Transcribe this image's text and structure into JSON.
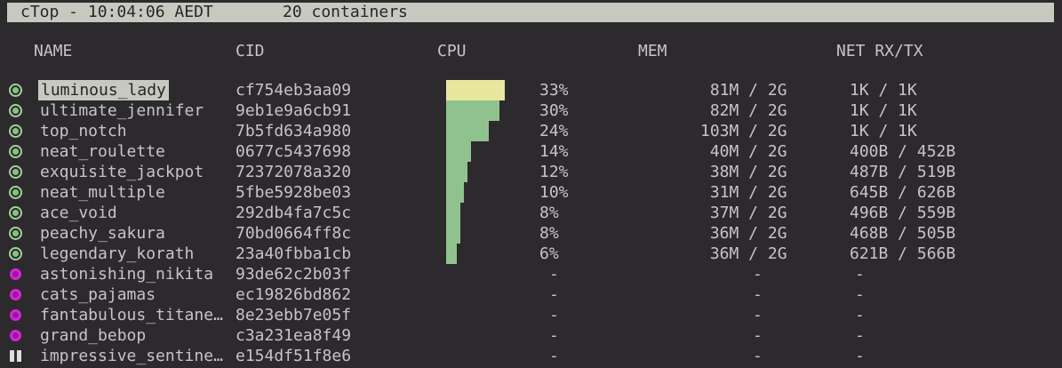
{
  "topbar": {
    "title": "cTop - 10:04:06 AEDT",
    "count_label": "20 containers"
  },
  "columns": {
    "name": "NAME",
    "cid": "CID",
    "cpu": "CPU",
    "mem": "MEM",
    "net": "NET RX/TX"
  },
  "colors": {
    "background": "#2d2a2d",
    "topbar_bg": "#c7c9c1",
    "topbar_text": "#262626",
    "text": "#c7c4c7",
    "selected_bg": "#c7c9c1",
    "selected_text": "#262626",
    "bar_yellow": "#e9e6a0",
    "bar_green": "#90c290",
    "status_running": "#87c283",
    "status_exited": "#d428d4",
    "status_paused": "#dedede"
  },
  "dash": "-",
  "rows": [
    {
      "status": "running",
      "selected": true,
      "name": "luminous_lady",
      "cid": "cf754eb3aa09",
      "cpu": "33%",
      "cpu_pct": 33,
      "bar": "yellow",
      "mem_used": "81M",
      "mem_limit": "2G",
      "net_rx": "1K",
      "net_tx": "1K"
    },
    {
      "status": "running",
      "name": "ultimate_jennifer",
      "cid": "9eb1e9a6cb91",
      "cpu": "30%",
      "cpu_pct": 30,
      "bar": "green",
      "mem_used": "82M",
      "mem_limit": "2G",
      "net_rx": "1K",
      "net_tx": "1K"
    },
    {
      "status": "running",
      "name": "top_notch",
      "cid": "7b5fd634a980",
      "cpu": "24%",
      "cpu_pct": 24,
      "bar": "green",
      "mem_used": "103M",
      "mem_limit": "2G",
      "net_rx": "1K",
      "net_tx": "1K"
    },
    {
      "status": "running",
      "name": "neat_roulette",
      "cid": "0677c5437698",
      "cpu": "14%",
      "cpu_pct": 14,
      "bar": "green",
      "mem_used": "40M",
      "mem_limit": "2G",
      "net_rx": "400B",
      "net_tx": "452B"
    },
    {
      "status": "running",
      "name": "exquisite_jackpot",
      "cid": "72372078a320",
      "cpu": "12%",
      "cpu_pct": 12,
      "bar": "green",
      "mem_used": "38M",
      "mem_limit": "2G",
      "net_rx": "487B",
      "net_tx": "519B"
    },
    {
      "status": "running",
      "name": "neat_multiple",
      "cid": "5fbe5928be03",
      "cpu": "10%",
      "cpu_pct": 10,
      "bar": "green",
      "mem_used": "31M",
      "mem_limit": "2G",
      "net_rx": "645B",
      "net_tx": "626B"
    },
    {
      "status": "running",
      "name": "ace_void",
      "cid": "292db4fa7c5c",
      "cpu": "8%",
      "cpu_pct": 8,
      "bar": "green",
      "mem_used": "37M",
      "mem_limit": "2G",
      "net_rx": "496B",
      "net_tx": "559B"
    },
    {
      "status": "running",
      "name": "peachy_sakura",
      "cid": "70bd0664ff8c",
      "cpu": "8%",
      "cpu_pct": 8,
      "bar": "green",
      "mem_used": "36M",
      "mem_limit": "2G",
      "net_rx": "468B",
      "net_tx": "505B"
    },
    {
      "status": "running",
      "name": "legendary_korath",
      "cid": "23a40fbba1cb",
      "cpu": "6%",
      "cpu_pct": 6,
      "bar": "green",
      "mem_used": "36M",
      "mem_limit": "2G",
      "net_rx": "621B",
      "net_tx": "566B"
    },
    {
      "status": "exited",
      "name": "astonishing_nikita",
      "cid": "93de62c2b03f",
      "cpu": "-",
      "mem": "-",
      "net": "-"
    },
    {
      "status": "exited",
      "name": "cats_pajamas",
      "cid": "ec19826bd862",
      "cpu": "-",
      "mem": "-",
      "net": "-"
    },
    {
      "status": "exited",
      "name": "fantabulous_titane…",
      "cid": "8e23ebb7e05f",
      "cpu": "-",
      "mem": "-",
      "net": "-"
    },
    {
      "status": "exited",
      "name": "grand_bebop",
      "cid": "c3a231ea8f49",
      "cpu": "-",
      "mem": "-",
      "net": "-"
    },
    {
      "status": "paused",
      "name": "impressive_sentine…",
      "cid": "e154df51f8e6",
      "cpu": "-",
      "mem": "-",
      "net": "-"
    }
  ]
}
